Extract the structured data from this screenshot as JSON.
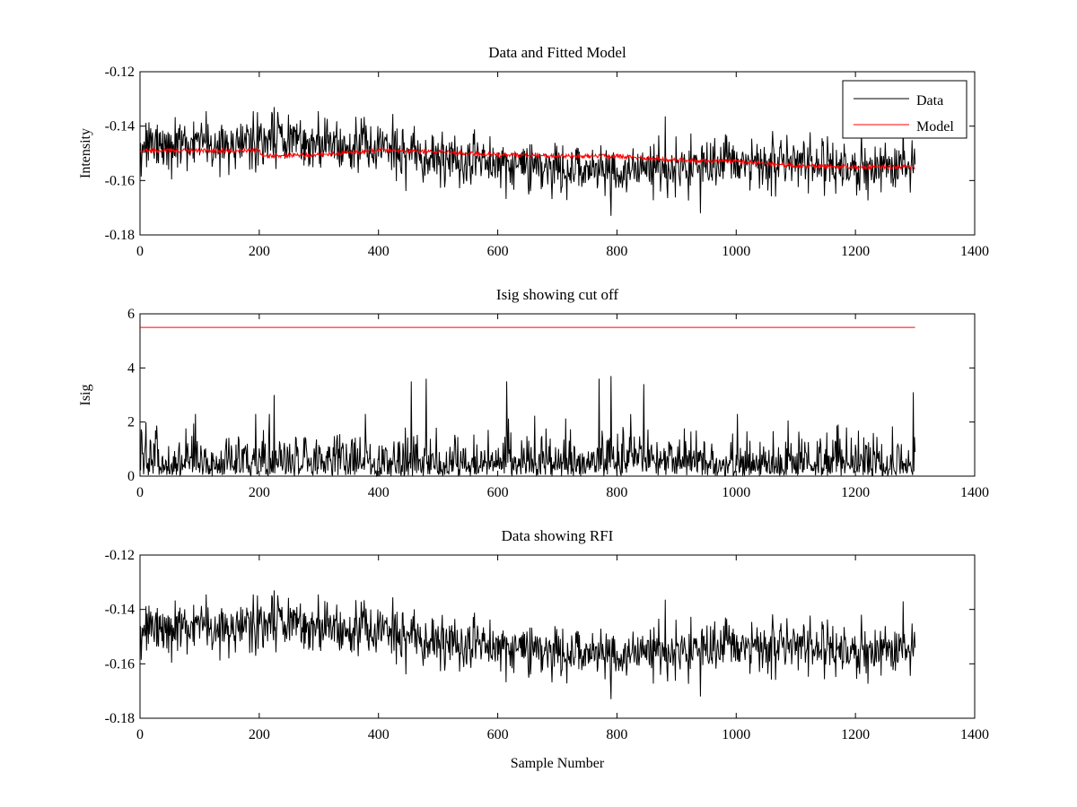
{
  "colors": {
    "data_line": "#000000",
    "model_line": "#ff0000",
    "background": "#ffffff",
    "axes": "#000000"
  },
  "chart_data": [
    {
      "type": "line",
      "title": "Data and Fitted Model",
      "xlabel": "",
      "ylabel": "Intensity",
      "xlim": [
        0,
        1400
      ],
      "ylim": [
        -0.18,
        -0.12
      ],
      "xticks": [
        0,
        200,
        400,
        600,
        800,
        1000,
        1200,
        1400
      ],
      "yticks": [
        -0.12,
        -0.14,
        -0.16,
        -0.18
      ],
      "xtick_labels": [
        "0",
        "200",
        "400",
        "600",
        "800",
        "1000",
        "1200",
        "1400"
      ],
      "ytick_labels": [
        "-0.12",
        "-0.14",
        "-0.16",
        "-0.18"
      ],
      "grid": false,
      "legend": {
        "placement": "top-right",
        "entries": [
          "Data",
          "Model"
        ]
      },
      "series": [
        {
          "name": "Data",
          "color": "#000000",
          "x_range": [
            1,
            1300
          ],
          "noise_sd": 0.0055,
          "baseline_points": [
            [
              0,
              -0.148
            ],
            [
              100,
              -0.147
            ],
            [
              200,
              -0.145
            ],
            [
              300,
              -0.146
            ],
            [
              400,
              -0.149
            ],
            [
              500,
              -0.152
            ],
            [
              600,
              -0.154
            ],
            [
              700,
              -0.156
            ],
            [
              800,
              -0.157
            ],
            [
              900,
              -0.155
            ],
            [
              1000,
              -0.154
            ],
            [
              1100,
              -0.153
            ],
            [
              1200,
              -0.155
            ],
            [
              1300,
              -0.155
            ]
          ],
          "annotated_extremes": [
            [
              225,
              -0.133
            ],
            [
              790,
              -0.173
            ],
            [
              940,
              -0.172
            ],
            [
              1280,
              -0.137
            ]
          ]
        },
        {
          "name": "Model",
          "color": "#ff0000",
          "x_range": [
            1,
            1300
          ],
          "baseline_points": [
            [
              0,
              -0.149
            ],
            [
              200,
              -0.149
            ],
            [
              205,
              -0.151
            ],
            [
              300,
              -0.1505
            ],
            [
              400,
              -0.149
            ],
            [
              500,
              -0.1495
            ],
            [
              600,
              -0.1505
            ],
            [
              700,
              -0.151
            ],
            [
              800,
              -0.151
            ],
            [
              900,
              -0.1525
            ],
            [
              1000,
              -0.153
            ],
            [
              1100,
              -0.1545
            ],
            [
              1200,
              -0.155
            ],
            [
              1300,
              -0.155
            ]
          ]
        }
      ]
    },
    {
      "type": "line",
      "title": "Isig showing cut off",
      "xlabel": "",
      "ylabel": "Isig",
      "xlim": [
        0,
        1400
      ],
      "ylim": [
        0,
        6
      ],
      "xticks": [
        0,
        200,
        400,
        600,
        800,
        1000,
        1200,
        1400
      ],
      "yticks": [
        0,
        2,
        4,
        6
      ],
      "xtick_labels": [
        "0",
        "200",
        "400",
        "600",
        "800",
        "1000",
        "1200",
        "1400"
      ],
      "ytick_labels": [
        "0",
        "2",
        "4",
        "6"
      ],
      "grid": false,
      "series": [
        {
          "name": "Isig",
          "color": "#000000",
          "x_range": [
            1,
            1300
          ],
          "typical_max": 2.3,
          "annotated_peaks": [
            [
              225,
              3.0
            ],
            [
              455,
              3.5
            ],
            [
              480,
              3.6
            ],
            [
              615,
              3.5
            ],
            [
              770,
              3.6
            ],
            [
              790,
              3.7
            ],
            [
              845,
              3.4
            ],
            [
              1297,
              3.1
            ]
          ]
        },
        {
          "name": "Cut off",
          "color": "#ff0000",
          "x_range": [
            0,
            1300
          ],
          "value": 5.5
        }
      ]
    },
    {
      "type": "line",
      "title": "Data showing RFI",
      "xlabel": "Sample Number",
      "ylabel": "",
      "xlim": [
        0,
        1400
      ],
      "ylim": [
        -0.18,
        -0.12
      ],
      "xticks": [
        0,
        200,
        400,
        600,
        800,
        1000,
        1200,
        1400
      ],
      "yticks": [
        -0.12,
        -0.14,
        -0.16,
        -0.18
      ],
      "xtick_labels": [
        "0",
        "200",
        "400",
        "600",
        "800",
        "1000",
        "1200",
        "1400"
      ],
      "ytick_labels": [
        "-0.12",
        "-0.14",
        "-0.16",
        "-0.18"
      ],
      "grid": false,
      "series": [
        {
          "name": "Data",
          "color": "#000000",
          "x_range": [
            1,
            1300
          ],
          "same_as": "Data and Fitted Model / Data"
        }
      ]
    }
  ]
}
